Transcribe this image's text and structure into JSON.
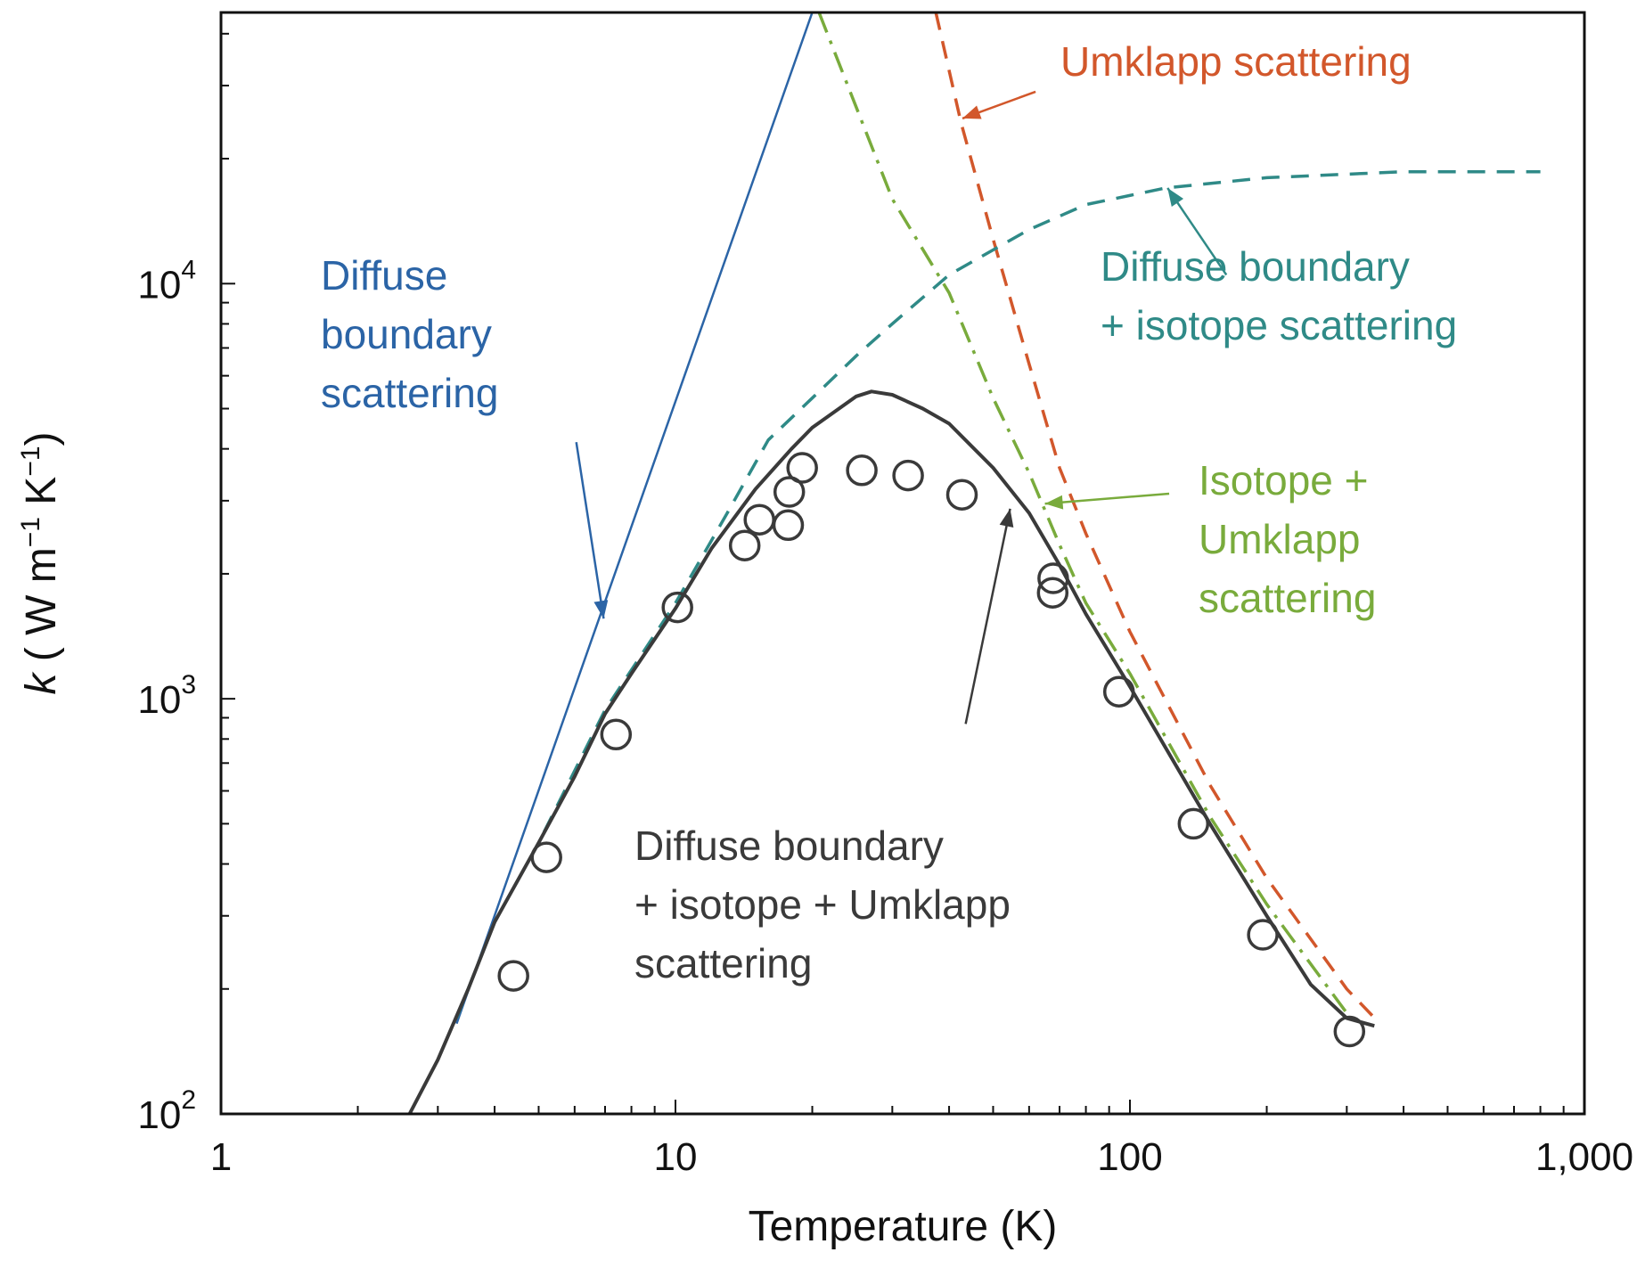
{
  "chart_data": {
    "type": "line",
    "xscale": "log",
    "yscale": "log",
    "xlim": [
      1,
      1000
    ],
    "ylim": [
      100,
      45000
    ],
    "grid": false,
    "xlabel": "Temperature (K)",
    "ylabel": {
      "symbol": "k",
      "open": " ( W m",
      "exp1": "−1",
      "mid": " K",
      "exp2": "−1",
      "close": ")"
    },
    "xticks": [
      {
        "value": 1,
        "label": "1"
      },
      {
        "value": 10,
        "label": "10"
      },
      {
        "value": 100,
        "label": "100"
      },
      {
        "value": 1000,
        "label": "1,000"
      }
    ],
    "yticks": [
      {
        "value": 100,
        "base": "10",
        "exp": "2"
      },
      {
        "value": 1000,
        "base": "10",
        "exp": "3"
      },
      {
        "value": 10000,
        "base": "10",
        "exp": "4"
      }
    ],
    "colors": {
      "boundary": "#2b64a6",
      "umklapp": "#d2572b",
      "boundary_isotope": "#2f8a87",
      "isotope_umklapp": "#79ab3c",
      "total": "#3a3a3a",
      "axis": "#111111"
    },
    "series": [
      {
        "key": "boundary",
        "style": "solid",
        "points": [
          [
            3.3,
            165
          ],
          [
            20.0,
            45000
          ]
        ]
      },
      {
        "key": "umklapp",
        "style": "dashed",
        "points": [
          [
            37.4,
            45000
          ],
          [
            42.5,
            24400
          ],
          [
            50,
            12800
          ],
          [
            60,
            6400
          ],
          [
            70,
            3600
          ],
          [
            80,
            2500
          ],
          [
            100,
            1450
          ],
          [
            150,
            620
          ],
          [
            200,
            370
          ],
          [
            300,
            200
          ],
          [
            355,
            165
          ]
        ]
      },
      {
        "key": "boundary_isotope",
        "style": "dashed",
        "points": [
          [
            3.3,
            170
          ],
          [
            4,
            290
          ],
          [
            5,
            450
          ],
          [
            7,
            940
          ],
          [
            10,
            1700
          ],
          [
            13,
            2800
          ],
          [
            16,
            4200
          ],
          [
            20,
            5300
          ],
          [
            25,
            6700
          ],
          [
            30,
            8000
          ],
          [
            40,
            10500
          ],
          [
            60,
            13500
          ],
          [
            80,
            15500
          ],
          [
            120,
            17000
          ],
          [
            200,
            18000
          ],
          [
            400,
            18600
          ],
          [
            800,
            18600
          ]
        ]
      },
      {
        "key": "isotope_umklapp",
        "style": "dash-dot",
        "points": [
          [
            20.7,
            45000
          ],
          [
            30,
            16000
          ],
          [
            40,
            9500
          ],
          [
            50,
            5300
          ],
          [
            60,
            3500
          ],
          [
            70,
            2350
          ],
          [
            80,
            1700
          ],
          [
            100,
            1150
          ],
          [
            150,
            520
          ],
          [
            200,
            320
          ],
          [
            300,
            175
          ]
        ]
      },
      {
        "key": "total",
        "style": "solid",
        "points": [
          [
            2.6,
            100
          ],
          [
            3,
            135
          ],
          [
            3.5,
            200
          ],
          [
            4,
            290
          ],
          [
            5,
            450
          ],
          [
            6,
            650
          ],
          [
            7,
            920
          ],
          [
            8,
            1150
          ],
          [
            10,
            1650
          ],
          [
            12,
            2300
          ],
          [
            15,
            3200
          ],
          [
            18,
            4000
          ],
          [
            20,
            4500
          ],
          [
            25,
            5350
          ],
          [
            27,
            5500
          ],
          [
            30,
            5400
          ],
          [
            35,
            5000
          ],
          [
            40,
            4600
          ],
          [
            50,
            3600
          ],
          [
            60,
            2800
          ],
          [
            70,
            2100
          ],
          [
            80,
            1600
          ],
          [
            100,
            1070
          ],
          [
            120,
            760
          ],
          [
            150,
            500
          ],
          [
            200,
            300
          ],
          [
            250,
            205
          ],
          [
            300,
            170
          ],
          [
            345,
            163
          ]
        ]
      }
    ],
    "data_points": [
      [
        4.4,
        215
      ],
      [
        5.2,
        415
      ],
      [
        7.4,
        820
      ],
      [
        10.1,
        1660
      ],
      [
        14.2,
        2340
      ],
      [
        15.3,
        2700
      ],
      [
        17.7,
        2620
      ],
      [
        17.8,
        3150
      ],
      [
        19.0,
        3600
      ],
      [
        25.7,
        3550
      ],
      [
        32.5,
        3450
      ],
      [
        42.7,
        3100
      ],
      [
        67.8,
        1950
      ],
      [
        67.6,
        1800
      ],
      [
        94.6,
        1040
      ],
      [
        138.0,
        500
      ],
      [
        196.0,
        270
      ],
      [
        304.0,
        158
      ]
    ],
    "annotations": [
      {
        "key": "boundary_label",
        "color": "#2b64a6",
        "lines": [
          "Diffuse",
          "boundary",
          "scattering"
        ],
        "arrow_tail": [
          6.05,
          4150
        ],
        "arrow_head": [
          6.95,
          1560
        ]
      },
      {
        "key": "umklapp_label",
        "color": "#d2572b",
        "lines": [
          "Umklapp scattering"
        ],
        "arrow_tail": [
          62,
          29000
        ],
        "arrow_head": [
          42.8,
          25000
        ]
      },
      {
        "key": "boundary_isotope_label",
        "color": "#2f8a87",
        "lines": [
          "Diffuse boundary",
          "+ isotope scattering"
        ],
        "arrow_tail": [
          163,
          10500
        ],
        "arrow_head": [
          121,
          17000
        ]
      },
      {
        "key": "isotope_umklapp_label",
        "color": "#79ab3c",
        "lines": [
          "Isotope +",
          "Umklapp",
          "scattering"
        ],
        "arrow_tail": [
          122,
          3120
        ],
        "arrow_head": [
          65,
          2950
        ]
      },
      {
        "key": "total_label",
        "color": "#3a3a3a",
        "lines": [
          "Diffuse boundary",
          "+ isotope + Umklapp",
          "scattering"
        ],
        "arrow_tail": [
          43.5,
          870
        ],
        "arrow_head": [
          54.5,
          2870
        ]
      }
    ]
  }
}
